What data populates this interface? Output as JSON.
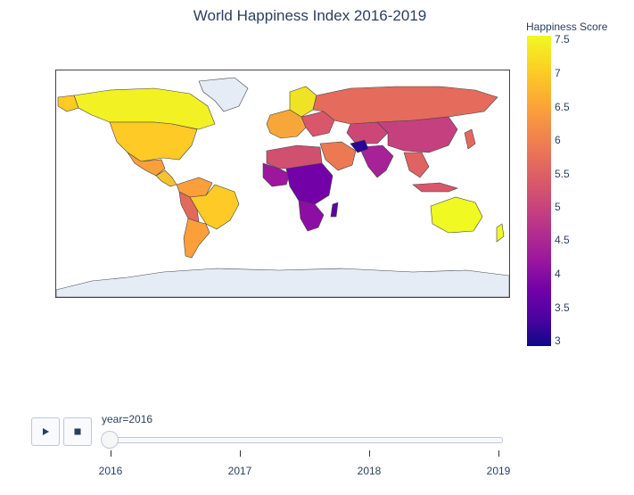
{
  "title": "World Happiness Index 2016-2019",
  "colorbar": {
    "title": "Happiness Score",
    "ticks": [
      "7.5",
      "7",
      "6.5",
      "6",
      "5.5",
      "5",
      "4.5",
      "4",
      "3.5",
      "3"
    ],
    "range": [
      2.9,
      7.5
    ],
    "colorscale": [
      "#0d0887",
      "#46039f",
      "#7201a8",
      "#9c179e",
      "#bd3786",
      "#d8576b",
      "#ed7953",
      "#fb9f3a",
      "#fdca26",
      "#f0f921"
    ]
  },
  "controls": {
    "play_icon": "play-icon",
    "stop_icon": "stop-icon"
  },
  "slider": {
    "current_label": "year=2016",
    "years": [
      "2016",
      "2017",
      "2018",
      "2019"
    ],
    "current_value": "2016"
  },
  "chart_data": {
    "type": "choropleth",
    "title": "World Happiness Index 2016-2019",
    "color_label": "Happiness Score",
    "animation_frame": "year",
    "frame_shown": "2016",
    "no_data_color": "#e5ecf6",
    "regions": [
      {
        "name": "Canada",
        "value": 7.4
      },
      {
        "name": "United States",
        "value": 7.1
      },
      {
        "name": "Mexico",
        "value": 6.8
      },
      {
        "name": "Brazil",
        "value": 7.0
      },
      {
        "name": "Argentina",
        "value": 6.6
      },
      {
        "name": "Western Europe",
        "value": 6.9
      },
      {
        "name": "Russia",
        "value": 5.9
      },
      {
        "name": "China",
        "value": 5.2
      },
      {
        "name": "India",
        "value": 4.4
      },
      {
        "name": "Sub-Saharan Africa",
        "value": 4.2
      },
      {
        "name": "Australia",
        "value": 7.3
      },
      {
        "name": "New Zealand",
        "value": 7.3
      }
    ]
  }
}
